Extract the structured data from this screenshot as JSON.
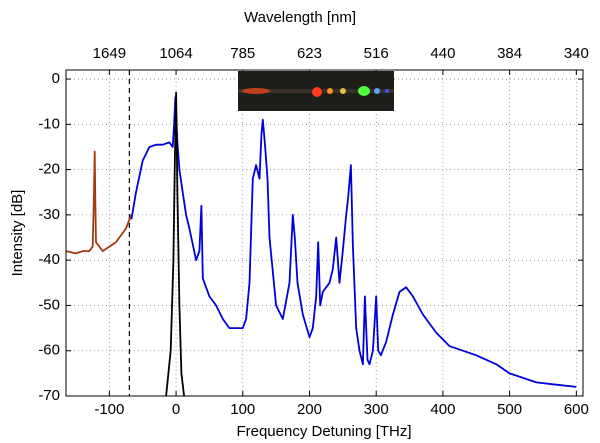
{
  "chart_data": {
    "type": "line",
    "x_label": "Frequency Detuning [THz]",
    "y_label": "Intensity [dB]",
    "x2_label": "Wavelength [nm]",
    "xlim": [
      -165,
      610
    ],
    "ylim": [
      -70,
      2
    ],
    "xticks": [
      -100,
      0,
      100,
      200,
      300,
      400,
      500,
      600
    ],
    "yticks": [
      0,
      -10,
      -20,
      -30,
      -40,
      -50,
      -60,
      -70
    ],
    "x2lim": [
      -165,
      610
    ],
    "x2ticks": [
      {
        "value": -100,
        "label": "1649"
      },
      {
        "value": 0,
        "label": "1064"
      },
      {
        "value": 100,
        "label": "785"
      },
      {
        "value": 200,
        "label": "623"
      },
      {
        "value": 300,
        "label": "516"
      },
      {
        "value": 400,
        "label": "440"
      },
      {
        "value": 500,
        "label": "384"
      },
      {
        "value": 600,
        "label": "340"
      }
    ],
    "grid": true,
    "vline_x": -70,
    "series": [
      {
        "color": "#a33a0e",
        "x": [
          -165,
          -150,
          -140,
          -130,
          -125,
          -123,
          -122,
          -121,
          -120,
          -110,
          -100,
          -90,
          -80,
          -75,
          -70,
          -67
        ],
        "values": [
          -38,
          -38.5,
          -38,
          -38,
          -37,
          -25,
          -16,
          -28,
          -36,
          -38,
          -37,
          -36,
          -34,
          -33,
          -31,
          -30
        ]
      },
      {
        "color": "#0000dd",
        "x": [
          -67,
          -60,
          -50,
          -40,
          -30,
          -20,
          -10,
          -5,
          -3,
          -1,
          2,
          5,
          10,
          15,
          20,
          30,
          35,
          38,
          40,
          50,
          60,
          70,
          80,
          90,
          100,
          105,
          110,
          115,
          120,
          125,
          128,
          130,
          133,
          137,
          140,
          150,
          160,
          170,
          175,
          178,
          182,
          190,
          200,
          205,
          210,
          213,
          216,
          220,
          230,
          235,
          240,
          245,
          250,
          255,
          258,
          262,
          265,
          270,
          275,
          280,
          283,
          287,
          290,
          295,
          300,
          303,
          307,
          315,
          325,
          335,
          345,
          355,
          370,
          390,
          410,
          430,
          450,
          480,
          500,
          520,
          540,
          570,
          600
        ],
        "values": [
          -31,
          -25,
          -18,
          -15,
          -14.5,
          -14.5,
          -14,
          -15,
          -10,
          -4,
          -14,
          -20,
          -25,
          -30,
          -33,
          -40,
          -38,
          -28,
          -44,
          -48,
          -50,
          -53,
          -55,
          -55,
          -55,
          -53,
          -45,
          -22,
          -19,
          -22,
          -12,
          -9,
          -14,
          -22,
          -35,
          -50,
          -53,
          -45,
          -30,
          -35,
          -45,
          -52,
          -57,
          -55,
          -48,
          -36,
          -50,
          -47,
          -45,
          -42,
          -35,
          -45,
          -38,
          -30,
          -26,
          -19,
          -37,
          -55,
          -60,
          -63,
          -48,
          -62,
          -63,
          -60,
          -48,
          -60,
          -61,
          -58,
          -52,
          -47,
          -46,
          -48,
          -52,
          -56,
          -59,
          -60,
          -61,
          -63,
          -65,
          -66,
          -67,
          -67.5,
          -68
        ]
      },
      {
        "color": "#000000",
        "x": [
          -15,
          -8,
          -4,
          -2,
          0,
          2,
          5,
          8,
          12
        ],
        "values": [
          -70,
          -60,
          -40,
          -20,
          -3,
          -25,
          -50,
          -65,
          -70
        ]
      }
    ]
  }
}
